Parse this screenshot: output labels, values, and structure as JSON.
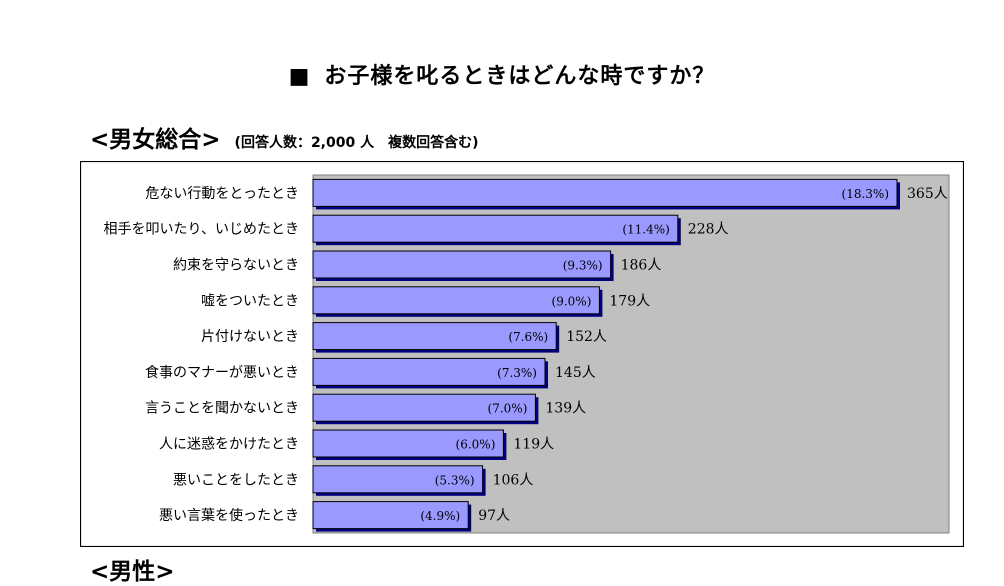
{
  "page": {
    "title_marker": "■",
    "title": "お子様を叱るときはどんな時ですか？",
    "section_heading": "<男女総合>",
    "respondent_note": "(回答人数：2,000 人　複数回答含む)",
    "next_heading": "<男性>"
  },
  "colors": {
    "bar_fill": "#9999ff",
    "bar_shadow": "#000080",
    "plot_bg": "#c0c0c0"
  },
  "chart_data": {
    "type": "bar",
    "orientation": "horizontal",
    "title": "お子様を叱るときはどんな時ですか？",
    "xlabel": "",
    "ylabel": "",
    "xlim": [
      0,
      365
    ],
    "grid": false,
    "categories": [
      "危ない行動をとったとき",
      "相手を叩いたり、いじめたとき",
      "約束を守らないとき",
      "嘘をついたとき",
      "片付けないとき",
      "食事のマナーが悪いとき",
      "言うことを聞かないとき",
      "人に迷惑をかけたとき",
      "悪いことをしたとき",
      "悪い言葉を使ったとき"
    ],
    "values": [
      365,
      228,
      186,
      179,
      152,
      145,
      139,
      119,
      106,
      97
    ],
    "value_labels": [
      "365人",
      "228人",
      "186人",
      "179人",
      "152人",
      "145人",
      "139人",
      "119人",
      "106人",
      "97人"
    ],
    "percent_labels": [
      "(18.3%)",
      "(11.4%)",
      "(9.3%)",
      "(9.0%)",
      "(7.6%)",
      "(7.3%)",
      "(7.0%)",
      "(6.0%)",
      "(5.3%)",
      "(4.9%)"
    ]
  }
}
